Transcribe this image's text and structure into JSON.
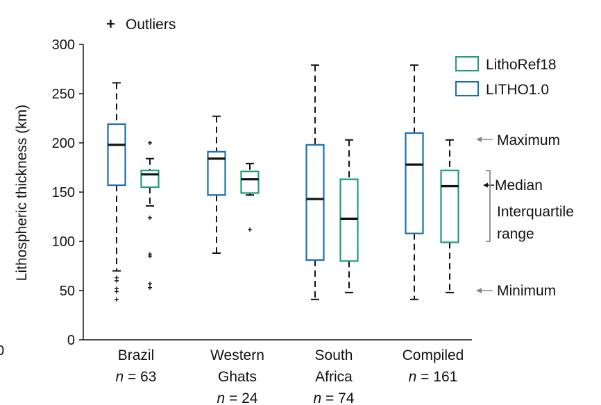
{
  "chart_data": {
    "type": "box",
    "ylabel": "Lithospheric thickness (km)",
    "ylim": [
      0,
      300
    ],
    "yticks": [
      0,
      50,
      100,
      150,
      200,
      250,
      300
    ],
    "outliers_legend": "Outliers",
    "outliers_legend_marker": "+",
    "legend": [
      {
        "name": "LithoRef18",
        "color": "#1a9e74"
      },
      {
        "name": "LITHO1.0",
        "color": "#1a6fae"
      }
    ],
    "categories": [
      {
        "label": [
          "Brazil"
        ],
        "n_prefix": "n",
        "n_value": "= 63"
      },
      {
        "label": [
          "Western",
          "Ghats"
        ],
        "n_prefix": "n",
        "n_value": "= 24"
      },
      {
        "label": [
          "South",
          "Africa"
        ],
        "n_prefix": "n",
        "n_value": "= 74"
      },
      {
        "label": [
          "Compiled"
        ],
        "n_prefix": "n",
        "n_value": "= 161"
      }
    ],
    "series": [
      {
        "name": "LITHO1.0",
        "color": "#1a6fae",
        "boxes": [
          {
            "min": 70,
            "q1": 157,
            "median": 198,
            "q3": 219,
            "max": 261,
            "outliers": [
              63,
              60,
              52,
              49,
              41
            ]
          },
          {
            "min": 88,
            "q1": 147,
            "median": 184,
            "q3": 191,
            "max": 227,
            "outliers": []
          },
          {
            "min": 41,
            "q1": 81,
            "median": 143,
            "q3": 198,
            "max": 279,
            "outliers": []
          },
          {
            "min": 41,
            "q1": 108,
            "median": 178,
            "q3": 210,
            "max": 279,
            "outliers": []
          }
        ]
      },
      {
        "name": "LithoRef18",
        "color": "#1a9e74",
        "boxes": [
          {
            "min": 136,
            "q1": 155,
            "median": 168,
            "q3": 172,
            "max": 184,
            "outliers": [
              200,
              124,
              87,
              85,
              57,
              53
            ]
          },
          {
            "min": 147,
            "q1": 149,
            "median": 163,
            "q3": 171,
            "max": 179,
            "outliers": [
              112
            ]
          },
          {
            "min": 48,
            "q1": 80,
            "median": 123,
            "q3": 163,
            "max": 203,
            "outliers": []
          },
          {
            "min": 48,
            "q1": 99,
            "median": 156,
            "q3": 172,
            "max": 203,
            "outliers": []
          }
        ]
      }
    ],
    "key": {
      "maximum": "Maximum",
      "median": "Median",
      "iqr": [
        "Interquartile",
        "range"
      ],
      "minimum": "Minimum"
    },
    "stray_tick": "0"
  }
}
